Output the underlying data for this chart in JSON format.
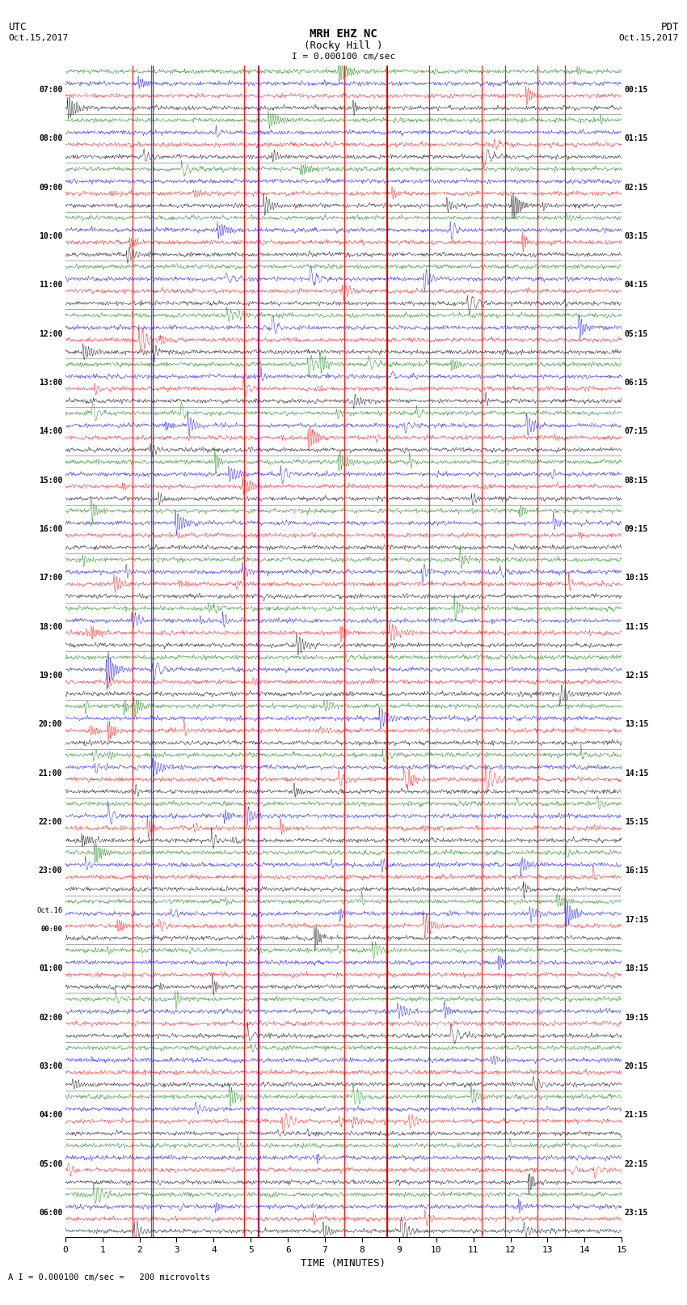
{
  "title_line1": "MRH EHZ NC",
  "title_line2": "(Rocky Hill )",
  "scale_label": "I = 0.000100 cm/sec",
  "footer_label": "A I = 0.000100 cm/sec =   200 microvolts",
  "xlabel": "TIME (MINUTES)",
  "left_header_line1": "UTC",
  "left_header_line2": "Oct.15,2017",
  "right_header_line1": "PDT",
  "right_header_line2": "Oct.15,2017",
  "fig_width": 8.5,
  "fig_height": 16.13,
  "colors": [
    "black",
    "red",
    "blue",
    "green"
  ],
  "background_color": "white",
  "left_label_times": [
    "07:00",
    "08:00",
    "09:00",
    "10:00",
    "11:00",
    "12:00",
    "13:00",
    "14:00",
    "15:00",
    "16:00",
    "17:00",
    "18:00",
    "19:00",
    "20:00",
    "21:00",
    "22:00",
    "23:00",
    "Oct.16\n00:00",
    "01:00",
    "02:00",
    "03:00",
    "04:00",
    "05:00",
    "06:00"
  ],
  "right_label_times": [
    "00:15",
    "01:15",
    "02:15",
    "03:15",
    "04:15",
    "05:15",
    "06:15",
    "07:15",
    "08:15",
    "09:15",
    "10:15",
    "11:15",
    "12:15",
    "13:15",
    "14:15",
    "15:15",
    "16:15",
    "17:15",
    "18:15",
    "19:15",
    "20:15",
    "21:15",
    "22:15",
    "23:15"
  ],
  "xmin": 0,
  "xmax": 15,
  "xticks": [
    0,
    1,
    2,
    3,
    4,
    5,
    6,
    7,
    8,
    9,
    10,
    11,
    12,
    13,
    14,
    15
  ],
  "noise_amplitude": 0.28,
  "event_amplitude": 3.5,
  "red_vlines": [
    1.82,
    2.31,
    4.83,
    5.18,
    7.52,
    8.65,
    9.82,
    11.22,
    11.85,
    12.72,
    13.47
  ],
  "blue_vlines": [
    2.35,
    5.22,
    8.68
  ],
  "num_hours": 24,
  "traces_per_hour": 4
}
